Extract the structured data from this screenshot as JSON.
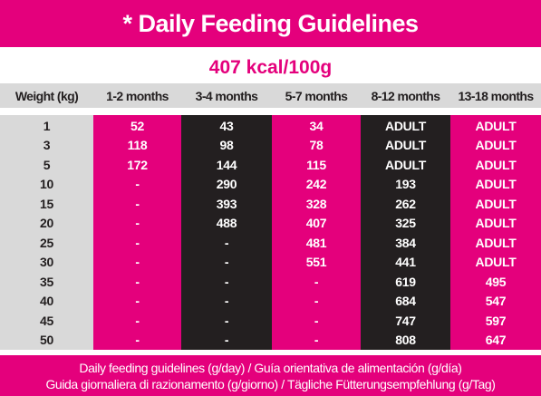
{
  "header": {
    "title": "* Daily Feeding Guidelines",
    "subtitle": "407 kcal/100g"
  },
  "table": {
    "columns": [
      "Weight (kg)",
      "1-2 months",
      "3-4 months",
      "5-7 months",
      "8-12 months",
      "13-18 months"
    ],
    "rows": [
      [
        "1",
        "52",
        "43",
        "34",
        "ADULT",
        "ADULT"
      ],
      [
        "3",
        "118",
        "98",
        "78",
        "ADULT",
        "ADULT"
      ],
      [
        "5",
        "172",
        "144",
        "115",
        "ADULT",
        "ADULT"
      ],
      [
        "10",
        "-",
        "290",
        "242",
        "193",
        "ADULT"
      ],
      [
        "15",
        "-",
        "393",
        "328",
        "262",
        "ADULT"
      ],
      [
        "20",
        "-",
        "488",
        "407",
        "325",
        "ADULT"
      ],
      [
        "25",
        "-",
        "-",
        "481",
        "384",
        "ADULT"
      ],
      [
        "30",
        "-",
        "-",
        "551",
        "441",
        "ADULT"
      ],
      [
        "35",
        "-",
        "-",
        "-",
        "619",
        "495"
      ],
      [
        "40",
        "-",
        "-",
        "-",
        "684",
        "547"
      ],
      [
        "45",
        "-",
        "-",
        "-",
        "747",
        "597"
      ],
      [
        "50",
        "-",
        "-",
        "-",
        "808",
        "647"
      ]
    ]
  },
  "footer": {
    "lines": [
      "Daily feeding guidelines (g/day) / Guía orientativa de alimentación (g/día)",
      "Guida giornaliera di razionamento (g/giorno) / Tägliche Fütterungsempfehlung (g/Tag)"
    ]
  }
}
